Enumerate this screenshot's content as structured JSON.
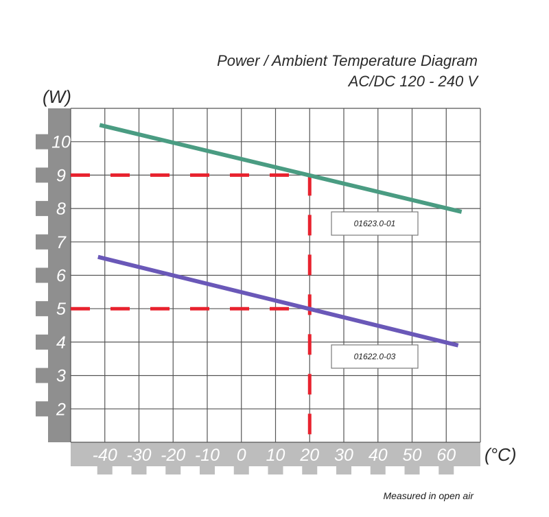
{
  "chart_data": {
    "type": "line",
    "title": "Power / Ambient Temperature Diagram",
    "subtitle": "AC/DC 120 - 240 V",
    "ylabel": "(W)",
    "xlabel": "(°C)",
    "note": "Measured in open air",
    "xlim": [
      -50,
      70
    ],
    "ylim": [
      1,
      11
    ],
    "x_ticks": [
      -40,
      -30,
      -20,
      -10,
      0,
      10,
      20,
      30,
      40,
      50,
      60
    ],
    "y_ticks": [
      2,
      3,
      4,
      5,
      6,
      7,
      8,
      9,
      10
    ],
    "grid": true,
    "series": [
      {
        "name": "01623.0-01",
        "color": "#4a9c82",
        "x": [
          -41.5,
          64.5
        ],
        "y": [
          10.5,
          7.9
        ]
      },
      {
        "name": "01622.0-03",
        "color": "#6a58b8",
        "x": [
          -42,
          63.5
        ],
        "y": [
          6.55,
          3.9
        ]
      }
    ],
    "guides": {
      "color": "#e8222e",
      "vertical_x": 20,
      "horizontal_y": [
        9,
        5
      ]
    }
  }
}
